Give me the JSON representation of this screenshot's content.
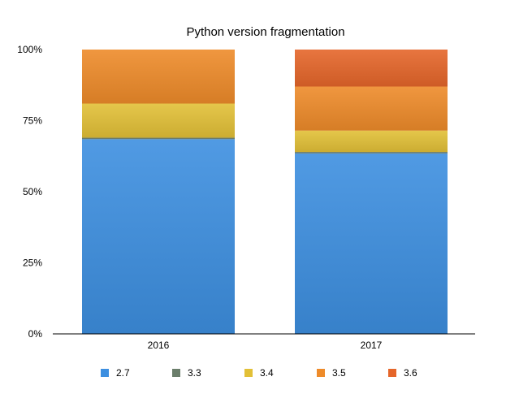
{
  "chart_data": {
    "type": "bar",
    "stacked": true,
    "title": "Python version fragmentation",
    "xlabel": "",
    "ylabel": "",
    "categories": [
      "2016",
      "2017"
    ],
    "ylim": [
      0,
      100
    ],
    "y_ticks": [
      "0%",
      "25%",
      "50%",
      "75%",
      "100%"
    ],
    "legend_position": "bottom",
    "grid": false,
    "series": [
      {
        "name": "2.7",
        "color": "#3d8fe0",
        "values": [
          68.5,
          63.5
        ]
      },
      {
        "name": "3.3",
        "color": "#6b7e6b",
        "values": [
          0.5,
          0.5
        ]
      },
      {
        "name": "3.4",
        "color": "#e2c037",
        "values": [
          12.0,
          7.5
        ]
      },
      {
        "name": "3.5",
        "color": "#ee8b2a",
        "values": [
          19.0,
          15.5
        ]
      },
      {
        "name": "3.6",
        "color": "#e5662a",
        "values": [
          0,
          13.0
        ]
      }
    ]
  }
}
